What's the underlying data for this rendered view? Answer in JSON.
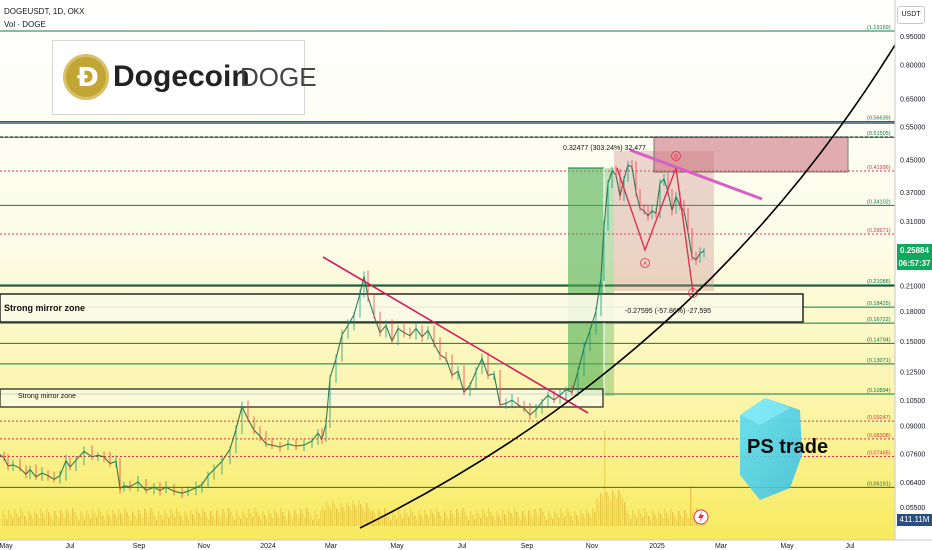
{
  "header": {
    "symbol_line": "DOGEUSDT, 1D, OKX",
    "volume_line": "Vol · DOGE"
  },
  "logo": {
    "name": "Dogecoin",
    "ticker": "DOGE",
    "coin_glyph": "Ð"
  },
  "price_scale_badge": "USDT",
  "watermark": "PS trade",
  "last_price": {
    "value": "0.25884",
    "countdown": "06:57:37"
  },
  "volume_badge": "411.11M",
  "zones": [
    {
      "label": "Strong mirror zone"
    },
    {
      "label": "Strong mirror zone"
    }
  ],
  "measure": {
    "up": "0.32477 (303.24%) 32,477",
    "down": "-0.27595 (-57.86%) -27,595"
  },
  "wave_labels": [
    "A",
    "B",
    "C"
  ],
  "colors": {
    "up": "#089981",
    "down": "#f23645",
    "fib_green": "#0b7a4b",
    "fib_red": "#e0324f",
    "trend": "#d81b60",
    "curve": "#000000",
    "sell_box": "#c96a7a",
    "buy_box": "#4caf50"
  },
  "chart_data": {
    "type": "line",
    "instrument": "DOGEUSDT",
    "interval": "1D",
    "exchange": "OKX",
    "y_scale": "log",
    "ylim": [
      0.053,
      1.12
    ],
    "x_tick_labels": [
      "May",
      "Jul",
      "Sep",
      "Nov",
      "2024",
      "Mar",
      "May",
      "Jul",
      "Sep",
      "Nov",
      "2025",
      "Mar",
      "May",
      "Jul"
    ],
    "y_tick_labels": [
      0.95,
      0.8,
      0.65,
      0.55,
      0.45,
      0.37,
      0.31,
      0.25884,
      0.21,
      0.18,
      0.15,
      0.125,
      0.105,
      0.09,
      0.076,
      0.064,
      0.055
    ],
    "fib_levels": [
      {
        "label": "(1.19169)",
        "value": 1.19169,
        "color": "#0b7a4b"
      },
      {
        "label": "(0.56639)",
        "value": 0.56639,
        "color": "#0b7a4b"
      },
      {
        "label": "(0.51505)",
        "value": 0.51505,
        "color": "#0b7a4b"
      },
      {
        "label": "(0.41996)",
        "value": 0.41996,
        "color": "#e0324f"
      },
      {
        "label": "(0.34102)",
        "value": 0.34102,
        "color": "#0b7a4b"
      },
      {
        "label": "(0.28671)",
        "value": 0.28671,
        "color": "#e0324f"
      },
      {
        "label": "(0.21088)",
        "value": 0.21088,
        "color": "#0b7a4b"
      },
      {
        "label": "(0.18425)",
        "value": 0.18425,
        "color": "#0b7a4b"
      },
      {
        "label": "(0.16722)",
        "value": 0.16722,
        "color": "#0b7a4b"
      },
      {
        "label": "(0.14794)",
        "value": 0.14794,
        "color": "#0b7a4b"
      },
      {
        "label": "(0.13071)",
        "value": 0.13071,
        "color": "#0b7a4b"
      },
      {
        "label": "(0.10894)",
        "value": 0.10894,
        "color": "#0b7a4b"
      },
      {
        "label": "(0.09247)",
        "value": 0.09247,
        "color": "#e0324f"
      },
      {
        "label": "(0.08308)",
        "value": 0.08308,
        "color": "#e0324f"
      },
      {
        "label": "(0.07465)",
        "value": 0.07465,
        "color": "#e0324f"
      },
      {
        "label": "(0.06191)",
        "value": 0.06191,
        "color": "#0b7a4b"
      }
    ],
    "price_path": [
      [
        0,
        0.0755
      ],
      [
        4,
        0.074
      ],
      [
        8,
        0.0705
      ],
      [
        13,
        0.071
      ],
      [
        20,
        0.0695
      ],
      [
        26,
        0.067
      ],
      [
        30,
        0.069
      ],
      [
        36,
        0.066
      ],
      [
        42,
        0.0675
      ],
      [
        48,
        0.0665
      ],
      [
        54,
        0.065
      ],
      [
        60,
        0.0665
      ],
      [
        66,
        0.0728
      ],
      [
        70,
        0.07
      ],
      [
        76,
        0.073
      ],
      [
        84,
        0.077
      ],
      [
        92,
        0.0745
      ],
      [
        98,
        0.0752
      ],
      [
        104,
        0.0745
      ],
      [
        110,
        0.0715
      ],
      [
        116,
        0.0725
      ],
      [
        120,
        0.0615
      ],
      [
        124,
        0.0625
      ],
      [
        130,
        0.0622
      ],
      [
        138,
        0.064
      ],
      [
        146,
        0.0608
      ],
      [
        154,
        0.062
      ],
      [
        160,
        0.0608
      ],
      [
        166,
        0.062
      ],
      [
        174,
        0.0605
      ],
      [
        182,
        0.0598
      ],
      [
        188,
        0.0605
      ],
      [
        196,
        0.0618
      ],
      [
        202,
        0.063
      ],
      [
        208,
        0.0665
      ],
      [
        214,
        0.069
      ],
      [
        222,
        0.0725
      ],
      [
        230,
        0.078
      ],
      [
        236,
        0.088
      ],
      [
        242,
        0.101
      ],
      [
        248,
        0.0935
      ],
      [
        254,
        0.0875
      ],
      [
        260,
        0.0845
      ],
      [
        266,
        0.0805
      ],
      [
        272,
        0.08
      ],
      [
        280,
        0.079
      ],
      [
        288,
        0.0805
      ],
      [
        296,
        0.0795
      ],
      [
        304,
        0.08
      ],
      [
        312,
        0.082
      ],
      [
        318,
        0.086
      ],
      [
        322,
        0.083
      ],
      [
        326,
        0.091
      ],
      [
        330,
        0.12
      ],
      [
        336,
        0.135
      ],
      [
        342,
        0.156
      ],
      [
        348,
        0.165
      ],
      [
        354,
        0.176
      ],
      [
        360,
        0.2
      ],
      [
        364,
        0.222
      ],
      [
        368,
        0.196
      ],
      [
        374,
        0.175
      ],
      [
        380,
        0.158
      ],
      [
        386,
        0.165
      ],
      [
        392,
        0.15
      ],
      [
        398,
        0.162
      ],
      [
        404,
        0.158
      ],
      [
        410,
        0.155
      ],
      [
        416,
        0.162
      ],
      [
        422,
        0.154
      ],
      [
        428,
        0.16
      ],
      [
        434,
        0.148
      ],
      [
        440,
        0.138
      ],
      [
        446,
        0.135
      ],
      [
        452,
        0.122
      ],
      [
        458,
        0.125
      ],
      [
        464,
        0.11
      ],
      [
        470,
        0.115
      ],
      [
        476,
        0.125
      ],
      [
        482,
        0.135
      ],
      [
        488,
        0.122
      ],
      [
        494,
        0.123
      ],
      [
        500,
        0.102
      ],
      [
        506,
        0.103
      ],
      [
        512,
        0.105
      ],
      [
        518,
        0.102
      ],
      [
        524,
        0.1
      ],
      [
        530,
        0.096
      ],
      [
        536,
        0.099
      ],
      [
        542,
        0.104
      ],
      [
        548,
        0.108
      ],
      [
        554,
        0.105
      ],
      [
        560,
        0.108
      ],
      [
        566,
        0.112
      ],
      [
        572,
        0.11
      ],
      [
        578,
        0.125
      ],
      [
        584,
        0.144
      ],
      [
        590,
        0.16
      ],
      [
        596,
        0.18
      ],
      [
        601,
        0.22
      ],
      [
        604,
        0.3
      ],
      [
        608,
        0.39
      ],
      [
        612,
        0.42
      ],
      [
        616,
        0.41
      ],
      [
        620,
        0.36
      ],
      [
        624,
        0.4
      ],
      [
        628,
        0.435
      ],
      [
        632,
        0.43
      ],
      [
        636,
        0.37
      ],
      [
        640,
        0.335
      ],
      [
        644,
        0.33
      ],
      [
        648,
        0.32
      ],
      [
        652,
        0.33
      ],
      [
        656,
        0.325
      ],
      [
        660,
        0.39
      ],
      [
        664,
        0.4
      ],
      [
        668,
        0.37
      ],
      [
        672,
        0.33
      ],
      [
        676,
        0.36
      ],
      [
        680,
        0.34
      ],
      [
        684,
        0.33
      ],
      [
        688,
        0.29
      ],
      [
        692,
        0.25
      ],
      [
        696,
        0.245
      ],
      [
        700,
        0.255
      ],
      [
        704,
        0.259
      ]
    ]
  }
}
